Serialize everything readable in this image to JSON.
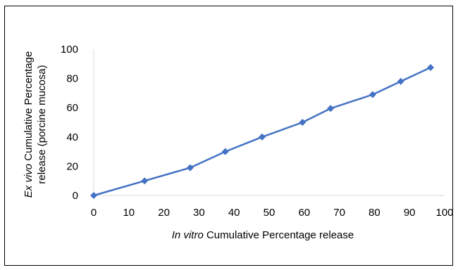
{
  "chart_data": {
    "type": "line",
    "x": [
      0,
      14.5,
      27.5,
      37.5,
      48,
      59.5,
      67.5,
      79.5,
      87.5,
      96
    ],
    "series": [
      {
        "values": [
          0,
          10,
          19,
          30,
          40,
          50,
          59.5,
          69,
          78,
          87.5
        ],
        "color": "#4472C4",
        "marker": "diamond"
      }
    ],
    "xlim": [
      0,
      100
    ],
    "ylim": [
      0,
      100
    ],
    "x_ticks": [
      "0",
      "10",
      "20",
      "30",
      "40",
      "50",
      "60",
      "70",
      "80",
      "90",
      "100"
    ],
    "y_ticks": [
      "0",
      "20",
      "40",
      "60",
      "80",
      "100"
    ],
    "xlabel_italic": "In vitro",
    "xlabel_rest": " Cumulative Percentage release",
    "ylabel_line1_italic": "Ex vivo",
    "ylabel_line1_rest": " Cumulative Percentage",
    "ylabel_line2": "release (porcine mucosa)",
    "grid": false,
    "legend": "none"
  }
}
